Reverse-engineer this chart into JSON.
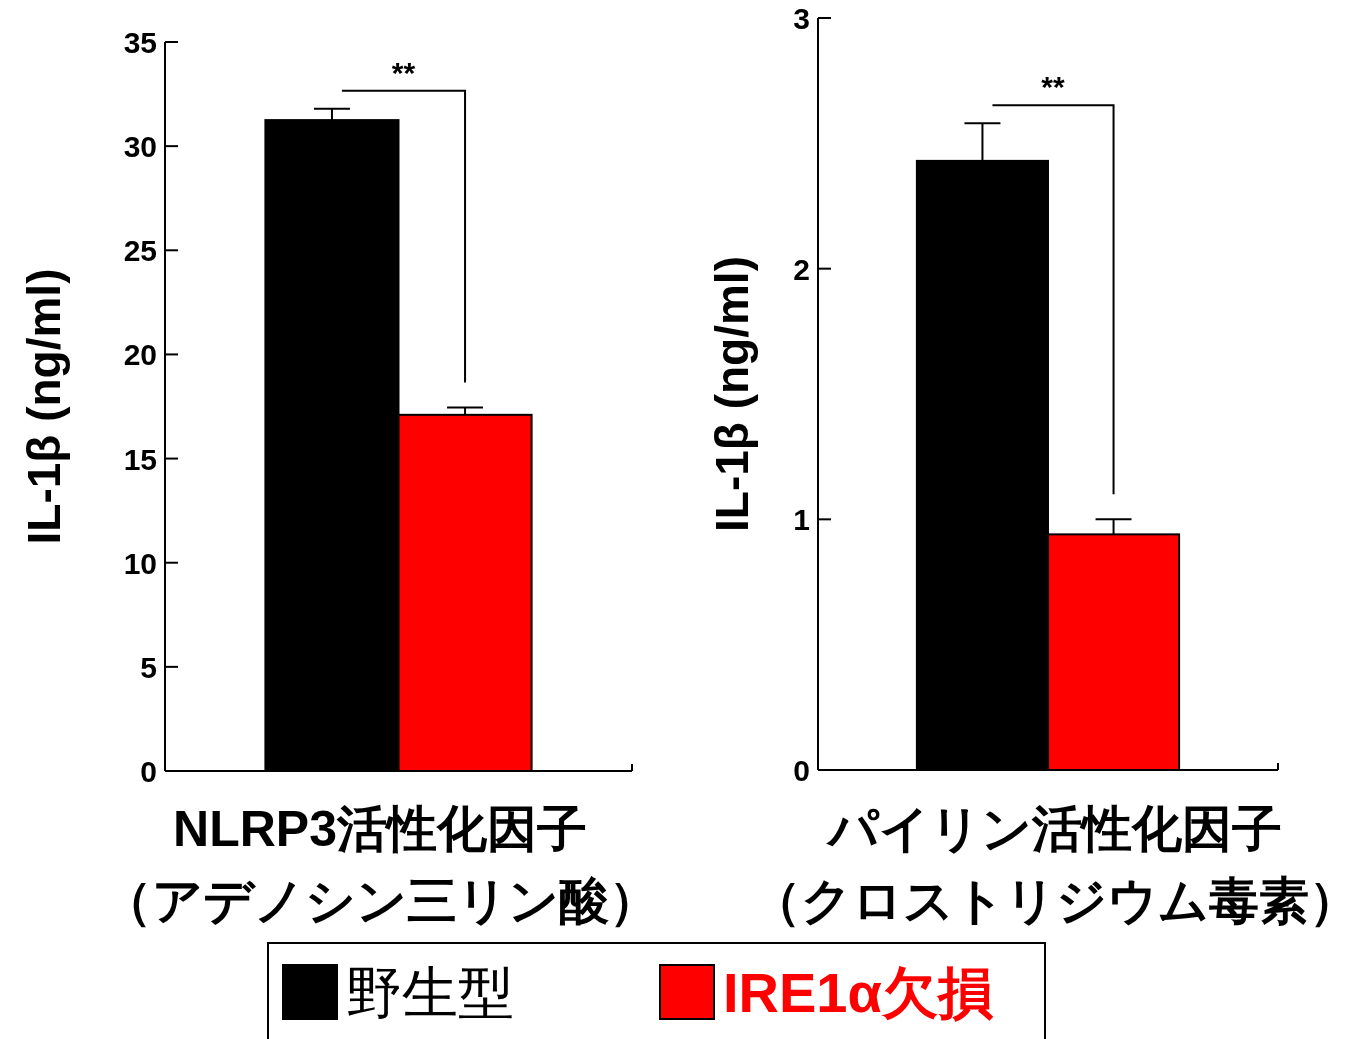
{
  "chart_data": [
    {
      "type": "bar",
      "categories": [
        null
      ],
      "ylabel": "IL-1β (ng/ml)",
      "xlabel": "NLRP3活性化因子（アデノシン三リン酸）",
      "ylim": [
        0,
        35
      ],
      "yticks": [
        0,
        5,
        10,
        15,
        20,
        25,
        30,
        35
      ],
      "legend": "bottom",
      "annotations": [
        "**"
      ],
      "series": [
        {
          "name": "野生型",
          "color": "#000000",
          "values": [
            31.25
          ],
          "errors": [
            0.55
          ]
        },
        {
          "name": "IRE1α欠損",
          "color": "#ff0000",
          "values": [
            17.1
          ],
          "errors": [
            0.35
          ]
        }
      ]
    },
    {
      "type": "bar",
      "categories": [
        null
      ],
      "ylabel": "IL-1β (ng/ml)",
      "xlabel": "パイリン活性化因子（クロストリジウム毒素）",
      "ylim": [
        0,
        3
      ],
      "yticks": [
        0,
        1,
        2,
        3
      ],
      "annotations": [
        "**"
      ],
      "series": [
        {
          "color": "#000000",
          "values": [
            2.43
          ],
          "errors": [
            0.15
          ]
        },
        {
          "color": "#ff0000",
          "values": [
            0.94
          ],
          "errors": [
            0.06
          ]
        }
      ]
    }
  ]
}
